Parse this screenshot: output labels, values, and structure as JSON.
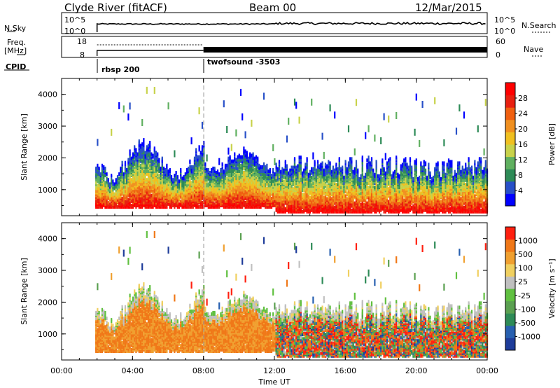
{
  "header": {
    "station": "Clyde River (fitACF)",
    "beam": "Beam 00",
    "date": "12/Mar/2015"
  },
  "top_panels": {
    "nsky_label": "N.Sky",
    "nsky_ticks": [
      "10^5",
      "10^0"
    ],
    "nsearch_label": "N.Search",
    "nsearch_ticks": [
      "10^5",
      "10^0"
    ],
    "freq_label": "Freq.",
    "freq_unit": "[MHz]",
    "freq_ticks": [
      "18",
      "8"
    ],
    "nave_label": "Nave",
    "nave_ticks": [
      "60",
      "0"
    ],
    "cpid_label": "CPID",
    "cpid_segments": [
      "rbsp 200",
      "twofsound -3503"
    ]
  },
  "chart_data": [
    {
      "type": "heatmap",
      "name": "power",
      "ylabel": "Slant Range [km]",
      "yticks": [
        "1000",
        "2000",
        "3000",
        "4000"
      ],
      "ylim": [
        180,
        4500
      ],
      "xlim": [
        "00:00",
        "24:00"
      ],
      "colorbar": {
        "label": "Power [dB]",
        "ticks": [
          "4",
          "8",
          "12",
          "16",
          "20",
          "24",
          "28"
        ],
        "colors": [
          "#0000ff",
          "#2850c8",
          "#2e8b57",
          "#60b060",
          "#c8d24a",
          "#f0c020",
          "#f09020",
          "#f06010",
          "#e82010",
          "#ff0000"
        ]
      }
    },
    {
      "type": "heatmap",
      "name": "velocity",
      "ylabel": "Slant Range [km]",
      "yticks": [
        "1000",
        "2000",
        "3000",
        "4000"
      ],
      "ylim": [
        180,
        4500
      ],
      "xlabel": "Time UT",
      "xticks": [
        "00:00",
        "04:00",
        "08:00",
        "12:00",
        "16:00",
        "20:00",
        "00:00"
      ],
      "colorbar": {
        "label": "Velocity [m s⁻¹]",
        "ticks": [
          "1000",
          "500",
          "100",
          "25",
          "-25",
          "-100",
          "-500",
          "-1000"
        ],
        "colors": [
          "#1e3c9a",
          "#2860b0",
          "#2e8b57",
          "#5aa050",
          "#60c040",
          "#c0c0c0",
          "#f0d060",
          "#f0a030",
          "#f07818",
          "#ff2010"
        ]
      }
    }
  ],
  "colors": {
    "marker": "#999999"
  }
}
